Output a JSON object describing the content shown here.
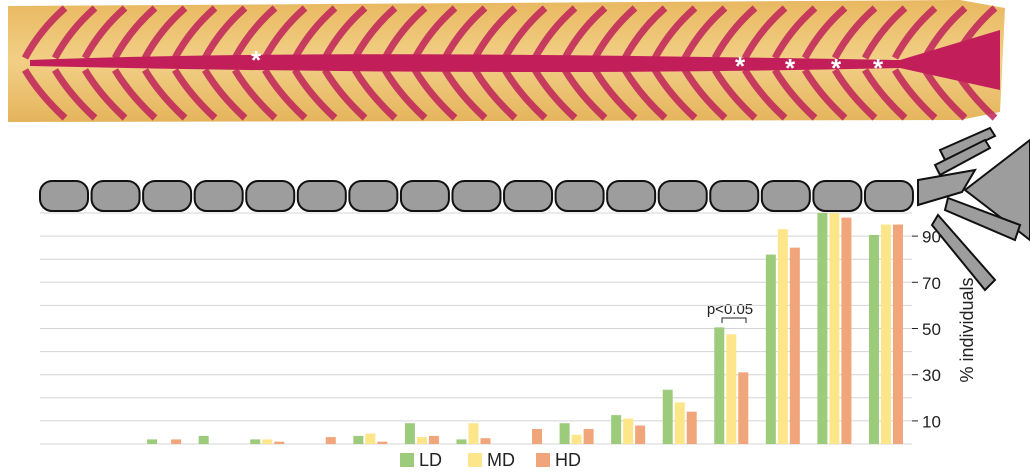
{
  "image": {
    "annotations": [
      "*",
      "*",
      "*",
      "*",
      "*"
    ]
  },
  "chart_data": {
    "type": "bar",
    "categories": [
      null,
      null,
      null,
      null,
      null,
      null,
      null,
      null,
      null,
      null,
      null,
      null,
      null,
      null,
      null,
      null,
      null
    ],
    "series": [
      {
        "name": "LD",
        "color": "#9ccb7c",
        "values": [
          0,
          0,
          2,
          3.5,
          2,
          0,
          3.5,
          9,
          2,
          0,
          9,
          12.5,
          23.5,
          50.5,
          82,
          100,
          90.5
        ]
      },
      {
        "name": "MD",
        "color": "#fde68a",
        "values": [
          0,
          0,
          0,
          0,
          2,
          0,
          4.5,
          3,
          9,
          0,
          4,
          11,
          18,
          47.5,
          93,
          100,
          95
        ]
      },
      {
        "name": "HD",
        "color": "#f0a67a",
        "values": [
          0,
          0,
          2,
          0,
          1,
          3,
          1,
          3.5,
          2.5,
          6.5,
          6.5,
          8,
          14,
          31,
          85,
          98,
          95
        ]
      }
    ],
    "ylim": [
      0,
      100
    ],
    "yticks": [
      10,
      30,
      50,
      70,
      90
    ],
    "minor_yticks": [
      0,
      20,
      40,
      60,
      80,
      100
    ],
    "grid": true,
    "y_label": "% individuals",
    "annotation": "p<0.05"
  }
}
